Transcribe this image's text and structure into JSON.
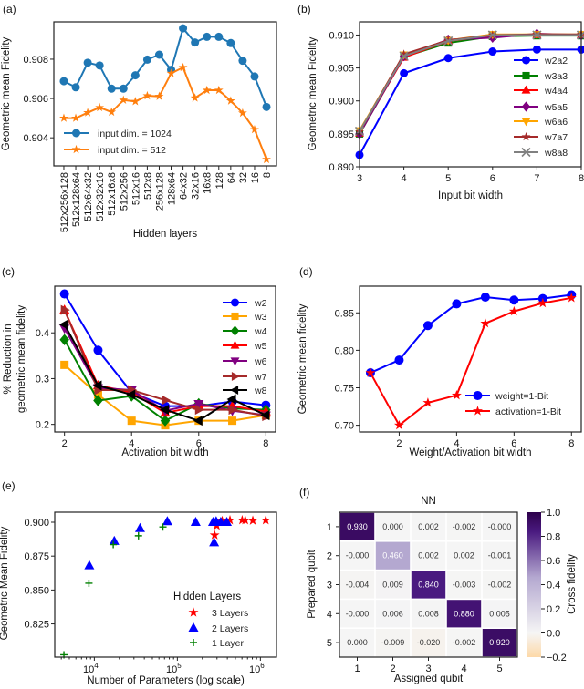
{
  "chart_data": [
    {
      "panel": "(a)",
      "type": "line",
      "xlabel": "Hidden layers",
      "ylabel": "Geometric mean Fidelity",
      "categories": [
        "512x256x128",
        "512x128x64",
        "512x64x32",
        "512x32x16",
        "512x16x8",
        "512x256",
        "512x16",
        "512x8",
        "256x128",
        "128x64",
        "64x32",
        "32x16",
        "16x8",
        "128",
        "64",
        "32",
        "16",
        "8"
      ],
      "yticks": [
        "0.904",
        "0.906",
        "0.908"
      ],
      "ylim": [
        0.90257,
        0.9099
      ],
      "legend": "lower-left",
      "series": [
        {
          "name": "input dim. = 1024",
          "color": "#1f77b4",
          "marker": "circle",
          "values": [
            0.90688,
            0.90657,
            0.90782,
            0.90768,
            0.9065,
            0.9065,
            0.90718,
            0.90798,
            0.90823,
            0.90746,
            0.90957,
            0.90885,
            0.90914,
            0.90914,
            0.90882,
            0.90792,
            0.90712,
            0.90557
          ]
        },
        {
          "name": "input dim. = 512",
          "color": "#ff7f0e",
          "marker": "star",
          "values": [
            0.905,
            0.905,
            0.90528,
            0.90554,
            0.90531,
            0.90592,
            0.90585,
            0.90614,
            0.90611,
            0.90728,
            0.90758,
            0.90603,
            0.90642,
            0.90642,
            0.90588,
            0.90526,
            0.90442,
            0.9029
          ]
        }
      ]
    },
    {
      "panel": "(b)",
      "type": "line",
      "xlabel": "Input bit width",
      "ylabel": "Geometric mean Fidelity",
      "x": [
        3,
        4,
        5,
        6,
        7,
        8
      ],
      "xticks": [
        "3",
        "4",
        "5",
        "6",
        "7",
        "8"
      ],
      "xlim": [
        3,
        8
      ],
      "yticks": [
        "0.890",
        "0.895",
        "0.900",
        "0.905",
        "0.910"
      ],
      "ylim": [
        0.89,
        0.912
      ],
      "legend": "center-right",
      "series": [
        {
          "name": "w2a2",
          "color": "#0000ff",
          "marker": "circle",
          "values": [
            0.8918,
            0.9042,
            0.9065,
            0.9075,
            0.9078,
            0.9078
          ]
        },
        {
          "name": "w3a3",
          "color": "#008000",
          "marker": "square",
          "values": [
            0.895,
            0.9067,
            0.9088,
            0.9098,
            0.9099,
            0.9099
          ]
        },
        {
          "name": "w4a4",
          "color": "#ff0000",
          "marker": "triangle-up",
          "values": [
            0.8951,
            0.9066,
            0.9091,
            0.9099,
            0.91,
            0.91
          ]
        },
        {
          "name": "w5a5",
          "color": "#800080",
          "marker": "diamond",
          "values": [
            0.895,
            0.9068,
            0.9093,
            0.9096,
            0.9102,
            0.91
          ]
        },
        {
          "name": "w6a6",
          "color": "#ffa500",
          "marker": "triangle-down",
          "values": [
            0.8955,
            0.907,
            0.9092,
            0.9101,
            0.9101,
            0.9101
          ]
        },
        {
          "name": "w7a7",
          "color": "#a52a2a",
          "marker": "star",
          "values": [
            0.8953,
            0.9071,
            0.9092,
            0.91,
            0.9101,
            0.9101
          ]
        },
        {
          "name": "w8a8",
          "color": "#808080",
          "marker": "x",
          "values": [
            0.8954,
            0.9068,
            0.9091,
            0.91,
            0.91,
            0.91
          ]
        }
      ]
    },
    {
      "panel": "(c)",
      "type": "line",
      "xlabel": "Activation bit width",
      "ylabel": "% Reduction in",
      "ylabel2": "geometric mean fidelity",
      "x": [
        2,
        3,
        4,
        5,
        6,
        7,
        8
      ],
      "xticks": [
        "2",
        "4",
        "6",
        "8"
      ],
      "xlim": [
        1.71,
        8.29
      ],
      "yticks": [
        "0.2",
        "0.3",
        "0.4"
      ],
      "ylim": [
        0.1834,
        0.502
      ],
      "legend": "upper-right",
      "series": [
        {
          "name": "w2",
          "color": "#0000ff",
          "marker": "circle",
          "values": [
            0.485,
            0.362,
            0.27,
            0.24,
            0.24,
            0.25,
            0.242
          ]
        },
        {
          "name": "w3",
          "color": "#ffa500",
          "marker": "square",
          "values": [
            0.33,
            0.265,
            0.208,
            0.198,
            0.208,
            0.208,
            0.22
          ]
        },
        {
          "name": "w4",
          "color": "#008000",
          "marker": "diamond",
          "values": [
            0.385,
            0.252,
            0.262,
            0.208,
            0.245,
            0.235,
            0.232
          ]
        },
        {
          "name": "w5",
          "color": "#ff0000",
          "marker": "triangle-up",
          "values": [
            0.45,
            0.285,
            0.27,
            0.225,
            0.24,
            0.24,
            0.228
          ]
        },
        {
          "name": "w6",
          "color": "#800080",
          "marker": "triangle-down",
          "values": [
            0.41,
            0.28,
            0.275,
            0.23,
            0.245,
            0.23,
            0.22
          ]
        },
        {
          "name": "w7",
          "color": "#a52a2a",
          "marker": "triangle-right",
          "values": [
            0.45,
            0.275,
            0.275,
            0.253,
            0.232,
            0.232,
            0.218
          ]
        },
        {
          "name": "w8",
          "color": "#000000",
          "marker": "triangle-left",
          "values": [
            0.418,
            0.285,
            0.265,
            0.232,
            0.208,
            0.255,
            0.22
          ]
        }
      ]
    },
    {
      "panel": "(d)",
      "type": "line",
      "xlabel": "Weight/Activation bit width",
      "ylabel": "Geometric mean fidelity",
      "x": [
        1,
        2,
        3,
        4,
        5,
        6,
        7,
        8
      ],
      "xticks": [
        "2",
        "4",
        "6",
        "8"
      ],
      "xlim": [
        0.62,
        8.34
      ],
      "yticks": [
        "0.70",
        "0.75",
        "0.80",
        "0.85"
      ],
      "ylim": [
        0.691,
        0.8856
      ],
      "legend": "lower-right",
      "series": [
        {
          "name": "weight=1-Bit",
          "color": "#0000ff",
          "marker": "circle",
          "values": [
            0.77,
            0.787,
            0.833,
            0.862,
            0.871,
            0.867,
            0.869,
            0.874
          ]
        },
        {
          "name": "activation=1-Bit",
          "color": "#ff0000",
          "marker": "star",
          "values": [
            0.77,
            0.7,
            0.73,
            0.74,
            0.836,
            0.852,
            0.863,
            0.87
          ]
        }
      ]
    },
    {
      "panel": "(e)",
      "type": "scatter",
      "xlabel": "Number of Parameters (log scale)",
      "ylabel": "Geometric Mean Fidelity",
      "xscale": "log",
      "xlim": [
        3335,
        1563000
      ],
      "xticks": [
        {
          "value": 10000,
          "base": "10",
          "exp": "4"
        },
        {
          "value": 100000,
          "base": "10",
          "exp": "5"
        },
        {
          "value": 1000000,
          "base": "10",
          "exp": "6"
        }
      ],
      "yticks": [
        "0.825",
        "0.850",
        "0.875",
        "0.900"
      ],
      "ylim": [
        0.8005,
        0.9074
      ],
      "legend_title": "Hidden Layers",
      "legend": "lower-right",
      "series": [
        {
          "name": "3 Layers",
          "color": "#ff0000",
          "marker": "star",
          "points": [
            [
              281000,
              0.8905
            ],
            [
              298000,
              0.8975
            ],
            [
              347000,
              0.901
            ],
            [
              430000,
              0.9015
            ],
            [
              603000,
              0.9015
            ],
            [
              656000,
              0.9015
            ],
            [
              810000,
              0.9012
            ],
            [
              1160000,
              0.9015
            ]
          ]
        },
        {
          "name": "2 Layers",
          "color": "#0000ff",
          "marker": "triangle-up",
          "points": [
            [
              8700,
              0.868
            ],
            [
              17400,
              0.886
            ],
            [
              35500,
              0.8955
            ],
            [
              75700,
              0.9005
            ],
            [
              166000,
              0.9
            ],
            [
              269000,
              0.9
            ],
            [
              277000,
              0.885
            ],
            [
              293000,
              0.9005
            ],
            [
              333000,
              0.9
            ],
            [
              394000,
              0.9
            ]
          ]
        },
        {
          "name": "1 Layer",
          "color": "#008000",
          "marker": "plus",
          "points": [
            [
              4300,
              0.8022
            ],
            [
              8600,
              0.855
            ],
            [
              16900,
              0.8835
            ],
            [
              34000,
              0.89
            ],
            [
              67000,
              0.8965
            ]
          ]
        }
      ]
    },
    {
      "panel": "(f)",
      "type": "heatmap",
      "title": "NN",
      "xlabel": "Assigned qubit",
      "ylabel": "Prepared qubit",
      "xticks": [
        "1",
        "2",
        "3",
        "4",
        "5"
      ],
      "yticks": [
        "1",
        "2",
        "3",
        "4",
        "5"
      ],
      "values": [
        [
          "0.930",
          "0.000",
          "0.002",
          "-0.002",
          "-0.000"
        ],
        [
          "-0.000",
          "0.460",
          "0.002",
          "0.002",
          "-0.001"
        ],
        [
          "-0.004",
          "0.009",
          "0.840",
          "-0.003",
          "-0.002"
        ],
        [
          "-0.000",
          "0.006",
          "0.008",
          "0.880",
          "0.005"
        ],
        [
          "0.000",
          "-0.009",
          "-0.020",
          "-0.002",
          "0.920"
        ]
      ],
      "colorbar": {
        "label": "Cross fidelity",
        "range": [
          -0.2,
          1.0
        ],
        "ticks": [
          "−0.2",
          "0.0",
          "0.2",
          "0.4",
          "0.6",
          "0.8",
          "1.0"
        ],
        "colors": {
          "low": "#fdd9a8",
          "zero": "#f5f5f5",
          "mid": "#b4a8d0",
          "high": "#2d004b"
        }
      }
    }
  ]
}
